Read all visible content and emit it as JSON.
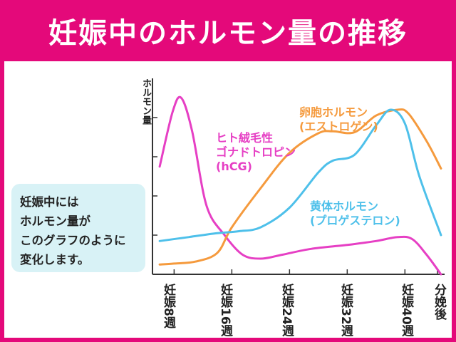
{
  "title": "妊娠中のホルモン量の推移",
  "callout": {
    "lines": [
      "妊娠中には",
      "ホルモン量が",
      "このグラフのように",
      "変化します。"
    ]
  },
  "chart_data": {
    "type": "line",
    "ylabel": "ホルモン量",
    "xlabel": "",
    "categories": [
      "妊娠8週",
      "妊娠16週",
      "妊娠24週",
      "妊娠32週",
      "妊娠40週",
      "分娩後"
    ],
    "x_tick_labels": [
      "妊娠\n8\n週",
      "妊娠\n16\n週",
      "妊娠\n24\n週",
      "妊娠\n32\n週",
      "妊娠\n40\n週",
      "分娩後"
    ],
    "xlim": [
      5,
      45.5
    ],
    "ylim": [
      0,
      100
    ],
    "grid": false,
    "series": [
      {
        "name": "ヒト絨毛性ゴナドトロピン(hCG)",
        "label_lines": [
          "ヒト絨毛性",
          "ゴナドトロピン",
          "(hCG)"
        ],
        "color": "#e63fc4",
        "points": [
          [
            6,
            55
          ],
          [
            7.8,
            83
          ],
          [
            9,
            90
          ],
          [
            10.5,
            73
          ],
          [
            12.5,
            35
          ],
          [
            15,
            20
          ],
          [
            17.5,
            10
          ],
          [
            20,
            8
          ],
          [
            23,
            10
          ],
          [
            27,
            13
          ],
          [
            32,
            15
          ],
          [
            36,
            17
          ],
          [
            39,
            19
          ],
          [
            41,
            18
          ],
          [
            43,
            10
          ],
          [
            45,
            0
          ]
        ]
      },
      {
        "name": "卵胞ホルモン(エストロゲン)",
        "label_lines": [
          "卵胞ホルモン",
          "(エストロゲン)"
        ],
        "color": "#f59a3d",
        "points": [
          [
            6,
            5
          ],
          [
            8,
            5.5
          ],
          [
            11,
            6.5
          ],
          [
            14,
            11
          ],
          [
            16,
            24
          ],
          [
            20,
            44
          ],
          [
            24,
            62
          ],
          [
            28,
            72
          ],
          [
            30,
            73
          ],
          [
            33,
            72.5
          ],
          [
            36,
            81
          ],
          [
            39,
            84
          ],
          [
            40.5,
            82
          ],
          [
            43,
            68
          ],
          [
            45,
            54
          ]
        ]
      },
      {
        "name": "黄体ホルモン(プロゲステロン)",
        "label_lines": [
          "黄体ホルモン",
          "(プロゲステロン)"
        ],
        "color": "#4ec0ea",
        "points": [
          [
            6,
            17
          ],
          [
            10,
            19
          ],
          [
            14,
            21
          ],
          [
            17,
            22
          ],
          [
            20,
            24
          ],
          [
            24,
            34
          ],
          [
            28,
            52
          ],
          [
            30,
            58
          ],
          [
            33,
            61
          ],
          [
            36,
            76
          ],
          [
            38,
            84
          ],
          [
            40,
            77
          ],
          [
            42,
            50
          ],
          [
            45,
            20
          ]
        ]
      }
    ]
  }
}
